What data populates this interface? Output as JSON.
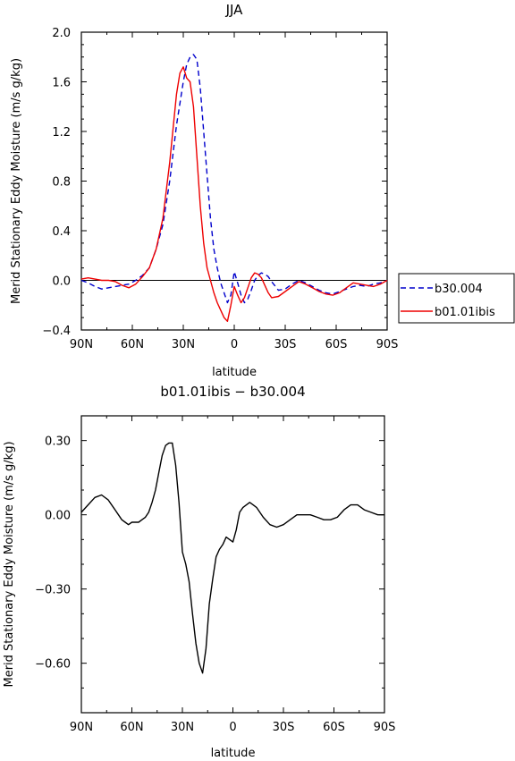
{
  "chart_data": [
    {
      "type": "line",
      "title": "JJA",
      "xlabel": "latitude",
      "ylabel": "Merid Stationary Eddy Moisture (m/s g/kg)",
      "xlim": [
        90,
        -90
      ],
      "ylim": [
        -0.4,
        2.0
      ],
      "x_ticks": [
        90,
        60,
        30,
        0,
        -30,
        -60,
        -90
      ],
      "x_tick_labels": [
        "90N",
        "60N",
        "30N",
        "0",
        "30S",
        "60S",
        "90S"
      ],
      "y_ticks": [
        -0.4,
        0.0,
        0.4,
        0.8,
        1.2,
        1.6,
        2.0
      ],
      "y_tick_labels": [
        "−0.4",
        "0.0",
        "0.4",
        "0.8",
        "1.2",
        "1.6",
        "2.0"
      ],
      "legend_position": "outside-right",
      "series": [
        {
          "name": "b30.004",
          "color": "#0000cc",
          "dash": "dashed",
          "x": [
            90,
            86,
            82,
            78,
            74,
            70,
            66,
            62,
            58,
            54,
            50,
            46,
            42,
            38,
            34,
            30,
            28,
            26,
            24,
            22,
            20,
            18,
            16,
            14,
            12,
            10,
            8,
            6,
            4,
            2,
            0,
            -2,
            -4,
            -6,
            -8,
            -10,
            -12,
            -14,
            -16,
            -18,
            -20,
            -22,
            -26,
            -30,
            -34,
            -38,
            -42,
            -46,
            -50,
            -54,
            -58,
            -62,
            -66,
            -70,
            -74,
            -78,
            -82,
            -86,
            -90
          ],
          "values": [
            0.0,
            -0.02,
            -0.05,
            -0.07,
            -0.06,
            -0.05,
            -0.04,
            -0.03,
            0.0,
            0.04,
            0.1,
            0.25,
            0.45,
            0.8,
            1.25,
            1.6,
            1.74,
            1.8,
            1.82,
            1.78,
            1.55,
            1.2,
            0.85,
            0.5,
            0.25,
            0.1,
            -0.02,
            -0.1,
            -0.18,
            -0.12,
            0.07,
            -0.02,
            -0.12,
            -0.18,
            -0.15,
            -0.08,
            0.0,
            0.04,
            0.06,
            0.05,
            0.03,
            -0.01,
            -0.08,
            -0.07,
            -0.03,
            0.0,
            -0.02,
            -0.05,
            -0.08,
            -0.1,
            -0.11,
            -0.09,
            -0.07,
            -0.05,
            -0.04,
            -0.05,
            -0.03,
            -0.02,
            0.0
          ]
        },
        {
          "name": "b01.01ibis",
          "color": "#ee0000",
          "dash": "solid",
          "x": [
            90,
            86,
            82,
            78,
            74,
            70,
            66,
            62,
            58,
            54,
            50,
            46,
            42,
            38,
            34,
            32,
            30,
            28,
            26,
            24,
            22,
            20,
            18,
            16,
            14,
            12,
            10,
            8,
            6,
            4,
            2,
            0,
            -2,
            -4,
            -6,
            -8,
            -10,
            -12,
            -14,
            -16,
            -18,
            -20,
            -22,
            -26,
            -30,
            -34,
            -38,
            -42,
            -46,
            -50,
            -54,
            -58,
            -62,
            -66,
            -70,
            -74,
            -78,
            -82,
            -86,
            -90
          ],
          "values": [
            0.01,
            0.02,
            0.01,
            0.0,
            0.0,
            -0.01,
            -0.04,
            -0.06,
            -0.03,
            0.03,
            0.1,
            0.25,
            0.5,
            0.95,
            1.5,
            1.67,
            1.72,
            1.63,
            1.6,
            1.4,
            1.0,
            0.6,
            0.3,
            0.1,
            0.0,
            -0.1,
            -0.18,
            -0.24,
            -0.3,
            -0.33,
            -0.2,
            -0.05,
            -0.12,
            -0.18,
            -0.14,
            -0.06,
            0.02,
            0.06,
            0.05,
            0.02,
            -0.04,
            -0.1,
            -0.14,
            -0.13,
            -0.09,
            -0.05,
            -0.01,
            -0.03,
            -0.06,
            -0.09,
            -0.11,
            -0.12,
            -0.1,
            -0.06,
            -0.02,
            -0.03,
            -0.04,
            -0.05,
            -0.03,
            0.0
          ]
        }
      ]
    },
    {
      "type": "line",
      "title": "b01.01ibis − b30.004",
      "xlabel": "latitude",
      "ylabel": "Merid Stationary Eddy Moisture (m/s g/kg)",
      "xlim": [
        90,
        -90
      ],
      "ylim": [
        -0.8,
        0.4
      ],
      "x_ticks": [
        90,
        60,
        30,
        0,
        -30,
        -60,
        -90
      ],
      "x_tick_labels": [
        "90N",
        "60N",
        "30N",
        "0",
        "30S",
        "60S",
        "90S"
      ],
      "y_ticks": [
        -0.6,
        -0.3,
        0.0,
        0.3
      ],
      "y_tick_labels": [
        "−0.60",
        "−0.30",
        "0.00",
        "0.30"
      ],
      "series": [
        {
          "color": "#000000",
          "dash": "solid",
          "x": [
            90,
            86,
            82,
            78,
            74,
            70,
            66,
            64,
            62,
            60,
            58,
            56,
            54,
            52,
            50,
            48,
            46,
            44,
            42,
            40,
            38,
            36,
            34,
            32,
            30,
            28,
            26,
            24,
            22,
            20,
            18,
            16,
            14,
            12,
            10,
            8,
            6,
            4,
            2,
            0,
            -2,
            -4,
            -6,
            -8,
            -10,
            -12,
            -14,
            -18,
            -22,
            -26,
            -30,
            -34,
            -38,
            -42,
            -46,
            -50,
            -54,
            -58,
            -62,
            -66,
            -70,
            -74,
            -78,
            -82,
            -86,
            -90
          ],
          "values": [
            0.01,
            0.04,
            0.07,
            0.08,
            0.06,
            0.02,
            -0.02,
            -0.03,
            -0.04,
            -0.03,
            -0.03,
            -0.03,
            -0.02,
            -0.01,
            0.01,
            0.05,
            0.1,
            0.17,
            0.24,
            0.28,
            0.29,
            0.29,
            0.2,
            0.05,
            -0.15,
            -0.2,
            -0.27,
            -0.4,
            -0.52,
            -0.6,
            -0.64,
            -0.54,
            -0.36,
            -0.26,
            -0.17,
            -0.14,
            -0.12,
            -0.09,
            -0.1,
            -0.11,
            -0.06,
            0.01,
            0.03,
            0.04,
            0.05,
            0.04,
            0.03,
            -0.01,
            -0.04,
            -0.05,
            -0.04,
            -0.02,
            0.0,
            0.0,
            0.0,
            -0.01,
            -0.02,
            -0.02,
            -0.01,
            0.02,
            0.04,
            0.04,
            0.02,
            0.01,
            0.0,
            0.0
          ]
        }
      ]
    }
  ]
}
